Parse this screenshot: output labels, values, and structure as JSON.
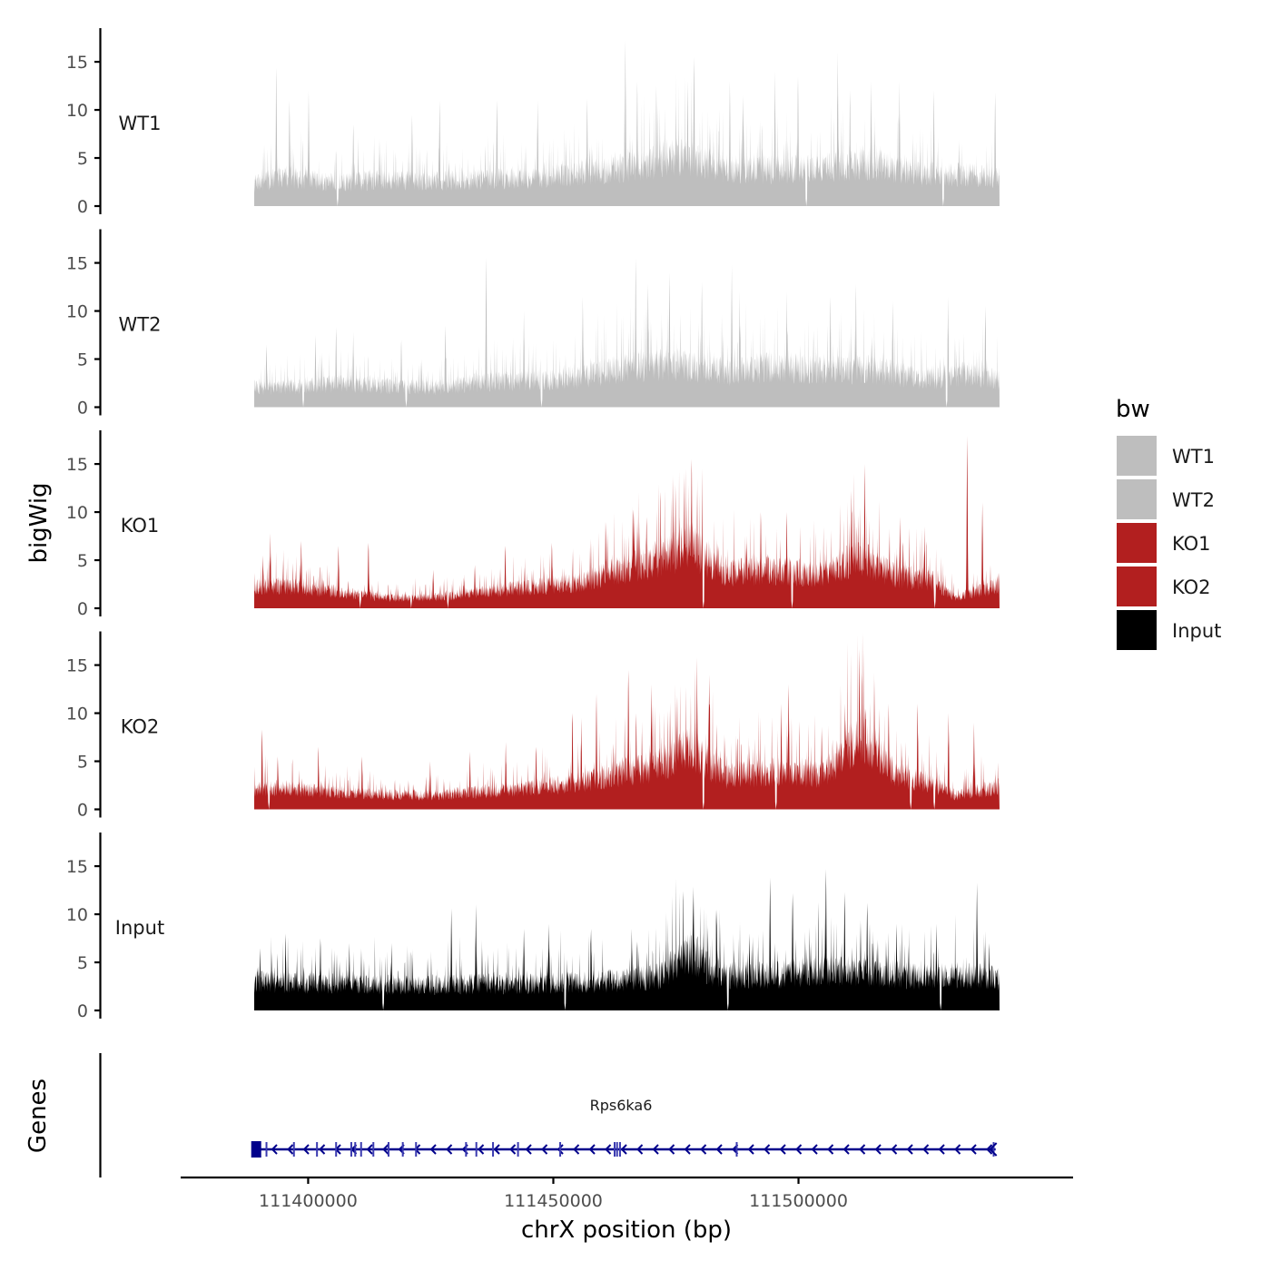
{
  "chart_data": {
    "type": "area",
    "chromosome": "chrX",
    "x_range_bp": [
      111389000,
      111541000
    ],
    "axis_limits_bp": [
      111374000,
      111556000
    ],
    "xlabel": "chrX position (bp)",
    "ylabel": "bigWig",
    "genes_label": "Genes",
    "x_ticks": [
      {
        "value": 111400000,
        "label": "111400000"
      },
      {
        "value": 111450000,
        "label": "111450000"
      },
      {
        "value": 111500000,
        "label": "111500000"
      }
    ],
    "y_ticks": [
      {
        "value": 0,
        "label": "0"
      },
      {
        "value": 5,
        "label": "5"
      },
      {
        "value": 10,
        "label": "10"
      },
      {
        "value": 15,
        "label": "15"
      }
    ],
    "ylim": [
      0,
      18.5
    ],
    "legend": {
      "title": "bw",
      "items": [
        {
          "label": "WT1",
          "color": "#bebebe"
        },
        {
          "label": "WT2",
          "color": "#bebebe"
        },
        {
          "label": "KO1",
          "color": "#b21f1f"
        },
        {
          "label": "KO2",
          "color": "#b21f1f"
        },
        {
          "label": "Input",
          "color": "#000000"
        }
      ]
    },
    "series": [
      {
        "name": "WT1",
        "color": "#bebebe",
        "base_profile": [
          [
            111389000,
            2.5
          ],
          [
            111395000,
            3.4
          ],
          [
            111405000,
            2.6
          ],
          [
            111415000,
            3.0
          ],
          [
            111425000,
            2.8
          ],
          [
            111435000,
            3.0
          ],
          [
            111445000,
            3.1
          ],
          [
            111455000,
            3.6
          ],
          [
            111465000,
            4.3
          ],
          [
            111475000,
            5.6
          ],
          [
            111485000,
            4.2
          ],
          [
            111495000,
            4.1
          ],
          [
            111505000,
            4.4
          ],
          [
            111515000,
            4.8
          ],
          [
            111525000,
            3.6
          ],
          [
            111535000,
            3.5
          ],
          [
            111541000,
            3.2
          ]
        ],
        "peaks": [
          [
            111393500,
            14.4
          ],
          [
            111396200,
            11.0
          ],
          [
            111400100,
            12.0
          ],
          [
            111409200,
            8.5
          ],
          [
            111421200,
            9.5
          ],
          [
            111426800,
            11.0
          ],
          [
            111438500,
            11.0
          ],
          [
            111446800,
            11.0
          ],
          [
            111456900,
            11.2
          ],
          [
            111464700,
            17.2
          ],
          [
            111467100,
            13.0
          ],
          [
            111471000,
            12.5
          ],
          [
            111478700,
            15.5
          ],
          [
            111477400,
            13.0
          ],
          [
            111486000,
            13.0
          ],
          [
            111488700,
            11.5
          ],
          [
            111495200,
            14.0
          ],
          [
            111499900,
            13.5
          ],
          [
            111508000,
            16.0
          ],
          [
            111510500,
            12.0
          ],
          [
            111514800,
            13.0
          ],
          [
            111520600,
            13.0
          ],
          [
            111527600,
            12.0
          ],
          [
            111540100,
            11.8
          ]
        ],
        "dips": [
          111406000,
          111501600,
          111529500
        ]
      },
      {
        "name": "WT2",
        "color": "#bebebe",
        "base_profile": [
          [
            111389000,
            2.2
          ],
          [
            111395000,
            2.3
          ],
          [
            111405000,
            2.6
          ],
          [
            111415000,
            2.5
          ],
          [
            111425000,
            2.2
          ],
          [
            111435000,
            2.8
          ],
          [
            111445000,
            3.0
          ],
          [
            111455000,
            3.3
          ],
          [
            111465000,
            4.5
          ],
          [
            111475000,
            4.8
          ],
          [
            111485000,
            4.0
          ],
          [
            111495000,
            4.5
          ],
          [
            111505000,
            4.2
          ],
          [
            111515000,
            4.3
          ],
          [
            111525000,
            3.2
          ],
          [
            111535000,
            3.8
          ],
          [
            111541000,
            3.0
          ]
        ],
        "peaks": [
          [
            111391500,
            6.5
          ],
          [
            111401500,
            7.5
          ],
          [
            111405700,
            8.3
          ],
          [
            111409200,
            7.8
          ],
          [
            111419000,
            7.0
          ],
          [
            111428000,
            8.5
          ],
          [
            111436300,
            15.6
          ],
          [
            111444000,
            10.0
          ],
          [
            111456000,
            11.5
          ],
          [
            111466800,
            15.5
          ],
          [
            111469300,
            12.8
          ],
          [
            111473700,
            14.0
          ],
          [
            111480300,
            13.0
          ],
          [
            111486400,
            14.8
          ],
          [
            111488000,
            12.0
          ],
          [
            111497600,
            12.0
          ],
          [
            111506500,
            11.5
          ],
          [
            111511700,
            12.8
          ],
          [
            111519200,
            11.0
          ],
          [
            111530500,
            11.5
          ],
          [
            111538100,
            10.5
          ]
        ],
        "dips": [
          111399000,
          111420000,
          111447600,
          111530200
        ]
      },
      {
        "name": "KO1",
        "color": "#b21f1f",
        "base_profile": [
          [
            111389000,
            2.5
          ],
          [
            111395000,
            2.5
          ],
          [
            111405000,
            1.9
          ],
          [
            111415000,
            1.2
          ],
          [
            111425000,
            1.2
          ],
          [
            111435000,
            1.8
          ],
          [
            111445000,
            2.4
          ],
          [
            111455000,
            2.8
          ],
          [
            111465000,
            4.5
          ],
          [
            111471000,
            5.5
          ],
          [
            111478000,
            7.2
          ],
          [
            111485000,
            4.0
          ],
          [
            111495000,
            4.3
          ],
          [
            111505000,
            3.8
          ],
          [
            111512000,
            5.8
          ],
          [
            111520000,
            3.6
          ],
          [
            111527000,
            3.2
          ],
          [
            111532000,
            1.2
          ],
          [
            111541000,
            2.6
          ]
        ],
        "peaks": [
          [
            111390800,
            5.5
          ],
          [
            111392300,
            7.8
          ],
          [
            111398600,
            7.0
          ],
          [
            111406200,
            6.5
          ],
          [
            111412300,
            6.8
          ],
          [
            111425500,
            4.0
          ],
          [
            111434000,
            4.5
          ],
          [
            111440200,
            6.5
          ],
          [
            111449700,
            6.8
          ],
          [
            111460800,
            9.0
          ],
          [
            111466500,
            9.8
          ],
          [
            111469000,
            9.5
          ],
          [
            111478200,
            15.5
          ],
          [
            111480400,
            14.5
          ],
          [
            111492300,
            10.0
          ],
          [
            111497600,
            10.0
          ],
          [
            111510800,
            12.2
          ],
          [
            111513500,
            15.0
          ],
          [
            111520700,
            9.5
          ],
          [
            111525700,
            8.5
          ],
          [
            111534400,
            17.9
          ],
          [
            111537500,
            11.0
          ]
        ],
        "dips": [
          111410600,
          111421000,
          111428500,
          111480600,
          111498700,
          111527800
        ]
      },
      {
        "name": "KO2",
        "color": "#b21f1f",
        "base_profile": [
          [
            111389000,
            2.3
          ],
          [
            111395000,
            2.4
          ],
          [
            111405000,
            1.9
          ],
          [
            111415000,
            1.7
          ],
          [
            111425000,
            1.6
          ],
          [
            111435000,
            2.0
          ],
          [
            111445000,
            2.4
          ],
          [
            111455000,
            3.0
          ],
          [
            111465000,
            4.3
          ],
          [
            111471000,
            4.8
          ],
          [
            111478000,
            6.8
          ],
          [
            111485000,
            3.8
          ],
          [
            111495000,
            4.2
          ],
          [
            111505000,
            4.0
          ],
          [
            111513000,
            8.5
          ],
          [
            111520000,
            4.0
          ],
          [
            111527000,
            3.0
          ],
          [
            111532000,
            1.6
          ],
          [
            111541000,
            2.5
          ]
        ],
        "peaks": [
          [
            111390600,
            8.3
          ],
          [
            111393800,
            5.5
          ],
          [
            111402100,
            6.5
          ],
          [
            111411000,
            5.5
          ],
          [
            111424900,
            5.0
          ],
          [
            111433000,
            6.0
          ],
          [
            111440300,
            7.0
          ],
          [
            111446500,
            6.5
          ],
          [
            111453900,
            10.0
          ],
          [
            111455700,
            9.5
          ],
          [
            111458800,
            12.0
          ],
          [
            111465300,
            14.5
          ],
          [
            111466900,
            10.0
          ],
          [
            111470000,
            13.0
          ],
          [
            111475100,
            11.8
          ],
          [
            111479300,
            15.8
          ],
          [
            111481800,
            14.0
          ],
          [
            111496500,
            11.0
          ],
          [
            111498000,
            13.0
          ],
          [
            111509500,
            11.0
          ],
          [
            111512400,
            16.7
          ],
          [
            111518400,
            11.0
          ],
          [
            111524300,
            11.0
          ],
          [
            111530600,
            10.0
          ],
          [
            111535800,
            9.0
          ]
        ],
        "dips": [
          111392000,
          111480600,
          111495400,
          111522900,
          111527700
        ]
      },
      {
        "name": "Input",
        "color": "#000000",
        "base_profile": [
          [
            111389000,
            3.3
          ],
          [
            111395000,
            3.2
          ],
          [
            111405000,
            3.0
          ],
          [
            111415000,
            2.9
          ],
          [
            111425000,
            2.9
          ],
          [
            111435000,
            3.0
          ],
          [
            111445000,
            3.0
          ],
          [
            111455000,
            3.2
          ],
          [
            111465000,
            3.4
          ],
          [
            111472000,
            3.9
          ],
          [
            111478000,
            6.6
          ],
          [
            111483000,
            4.0
          ],
          [
            111495000,
            4.0
          ],
          [
            111505000,
            4.6
          ],
          [
            111515000,
            4.2
          ],
          [
            111525000,
            3.8
          ],
          [
            111535000,
            3.9
          ],
          [
            111541000,
            3.6
          ]
        ],
        "peaks": [
          [
            111390200,
            6.5
          ],
          [
            111395400,
            8.0
          ],
          [
            111402500,
            7.5
          ],
          [
            111408400,
            7.0
          ],
          [
            111417000,
            7.0
          ],
          [
            111429200,
            10.6
          ],
          [
            111434200,
            11.0
          ],
          [
            111444000,
            8.5
          ],
          [
            111449100,
            9.0
          ],
          [
            111457700,
            8.5
          ],
          [
            111466000,
            8.5
          ],
          [
            111478500,
            12.9
          ],
          [
            111483300,
            10.5
          ],
          [
            111490000,
            8.0
          ],
          [
            111494200,
            13.8
          ],
          [
            111498800,
            12.2
          ],
          [
            111505600,
            14.7
          ],
          [
            111509400,
            12.3
          ],
          [
            111514000,
            11.2
          ],
          [
            111520000,
            9.0
          ],
          [
            111528100,
            9.0
          ],
          [
            111536400,
            13.3
          ],
          [
            111538900,
            7.0
          ]
        ],
        "dips": [
          111415300,
          111452400,
          111485600,
          111529000
        ]
      }
    ],
    "gene_track": {
      "gene_name": "Rps6ka6",
      "strand": "-",
      "start": 111389000,
      "end": 111540200,
      "exons": [
        111389500,
        111391500,
        111397100,
        111401800,
        111405700,
        111408800,
        111409600,
        111410800,
        111413300,
        111416400,
        111419300,
        111422000,
        111432200,
        111434300,
        111437700,
        111442800,
        111451400,
        111462500,
        111463000,
        111463600,
        111487400,
        111539800
      ]
    }
  }
}
